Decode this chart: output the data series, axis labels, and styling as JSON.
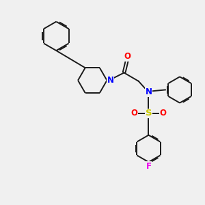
{
  "bg_color": "#f0f0f0",
  "bond_color": "#1a1a1a",
  "N_color": "#0000ff",
  "O_color": "#ff0000",
  "S_color": "#cccc00",
  "F_color": "#ee00ee",
  "linewidth": 1.4,
  "figsize": [
    3.0,
    3.0
  ],
  "dpi": 100,
  "xlim": [
    0,
    10
  ],
  "ylim": [
    0,
    10
  ]
}
